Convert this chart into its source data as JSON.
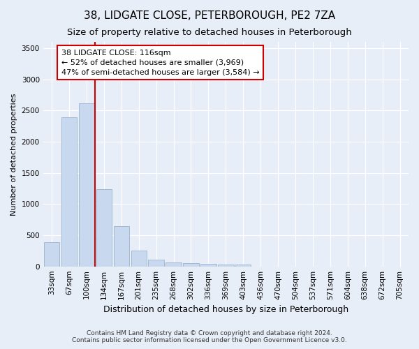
{
  "title": "38, LIDGATE CLOSE, PETERBOROUGH, PE2 7ZA",
  "subtitle": "Size of property relative to detached houses in Peterborough",
  "xlabel": "Distribution of detached houses by size in Peterborough",
  "ylabel": "Number of detached properties",
  "categories": [
    "33sqm",
    "67sqm",
    "100sqm",
    "134sqm",
    "167sqm",
    "201sqm",
    "235sqm",
    "268sqm",
    "302sqm",
    "336sqm",
    "369sqm",
    "403sqm",
    "436sqm",
    "470sqm",
    "504sqm",
    "537sqm",
    "571sqm",
    "604sqm",
    "638sqm",
    "672sqm",
    "705sqm"
  ],
  "values": [
    390,
    2390,
    2610,
    1240,
    640,
    255,
    105,
    60,
    50,
    40,
    35,
    30,
    0,
    0,
    0,
    0,
    0,
    0,
    0,
    0,
    0
  ],
  "bar_color": "#c8d8ee",
  "bar_edge_color": "#9ab4cc",
  "vline_x": 2.5,
  "vline_color": "#cc0000",
  "annotation_text": "38 LIDGATE CLOSE: 116sqm\n← 52% of detached houses are smaller (3,969)\n47% of semi-detached houses are larger (3,584) →",
  "annotation_box_facecolor": "#ffffff",
  "annotation_box_edgecolor": "#cc0000",
  "ylim": [
    0,
    3600
  ],
  "yticks": [
    0,
    500,
    1000,
    1500,
    2000,
    2500,
    3000,
    3500
  ],
  "bg_color": "#e8eef8",
  "grid_color": "#ffffff",
  "footer": "Contains HM Land Registry data © Crown copyright and database right 2024.\nContains public sector information licensed under the Open Government Licence v3.0.",
  "title_fontsize": 11,
  "subtitle_fontsize": 9.5,
  "xlabel_fontsize": 9,
  "ylabel_fontsize": 8,
  "tick_fontsize": 7.5,
  "footer_fontsize": 6.5,
  "annotation_fontsize": 8
}
